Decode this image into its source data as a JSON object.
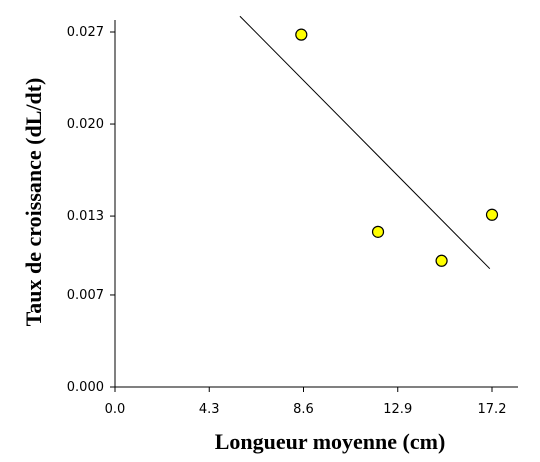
{
  "chart_data": {
    "type": "scatter",
    "title": "",
    "xlabel": "Longueur moyenne (cm)",
    "ylabel": "Taux de croissance (dL/dt)",
    "xlim": [
      0.0,
      18.6
    ],
    "ylim": [
      0.0,
      0.0285
    ],
    "x_ticks": [
      "0.0",
      "4.3",
      "8.6",
      "12.9",
      "17.2"
    ],
    "x_tick_values": [
      0.0,
      4.3,
      8.6,
      12.9,
      17.2
    ],
    "y_ticks": [
      "0.000",
      "0.007",
      "0.013",
      "0.020",
      "0.027"
    ],
    "y_tick_values": [
      0.0,
      0.007,
      0.013,
      0.02,
      0.027
    ],
    "grid": false,
    "points": [
      {
        "x": 8.5,
        "y": 0.0268
      },
      {
        "x": 12.0,
        "y": 0.0118
      },
      {
        "x": 14.9,
        "y": 0.0096
      },
      {
        "x": 17.2,
        "y": 0.0131
      }
    ],
    "trendline": {
      "start": {
        "x": 5.7,
        "y": 0.0282
      },
      "end": {
        "x": 17.1,
        "y": 0.009
      }
    },
    "colors": {
      "marker_fill": "#ffff00",
      "marker_stroke": "#000000",
      "axis": "#000000",
      "trendline": "#000000"
    }
  }
}
